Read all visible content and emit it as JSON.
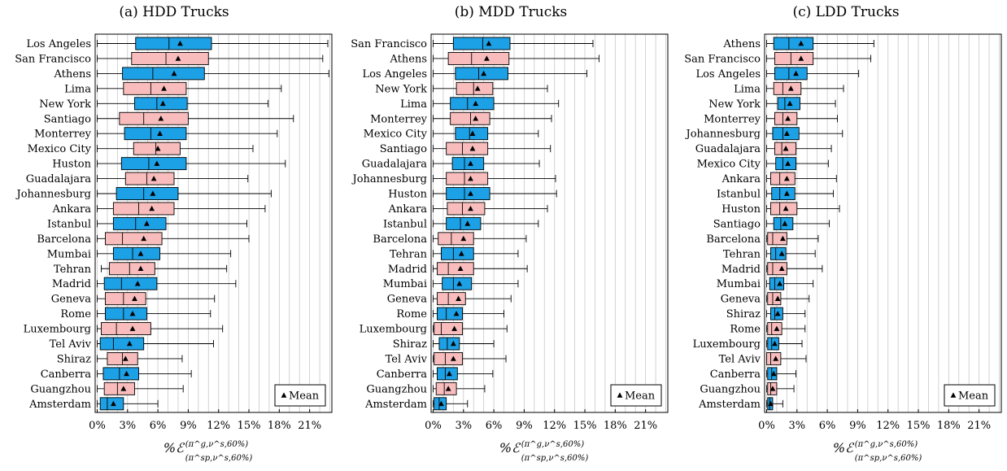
{
  "colors": {
    "salmon": "#f8bcbc",
    "blue": "#1ca0e6",
    "grid": "#c8c8c8",
    "frame": "#000000"
  },
  "xaxis": {
    "ticks": [
      0,
      3,
      6,
      9,
      12,
      15,
      18,
      21
    ],
    "tick_labels": [
      "0%",
      "3%",
      "6%",
      "9%",
      "12%",
      "15%",
      "18%",
      "21%"
    ],
    "label_main": "%ℰ",
    "label_sup": "(π^g,ν^s,60%)",
    "label_sub": "(π^sp,ν^s,60%)"
  },
  "chart_data": [
    {
      "type": "box",
      "title": "(a) HDD Trucks",
      "xlim": [
        -0.2,
        23.2
      ],
      "legend": {
        "label": "Mean",
        "placement": "bottom-right"
      },
      "categories": [
        "Los Angeles",
        "San Francisco",
        "Athens",
        "Lima",
        "New York",
        "Santiago",
        "Monterrey",
        "Mexico City",
        "Huston",
        "Guadalajara",
        "Johannesburg",
        "Ankara",
        "Istanbul",
        "Barcelona",
        "Mumbai",
        "Tehran",
        "Madrid",
        "Geneva",
        "Rome",
        "Luxembourg",
        "Tel Aviv",
        "Shiraz",
        "Canberra",
        "Guangzhou",
        "Amsterdam"
      ],
      "boxes": [
        {
          "min": 0,
          "q1": 3.8,
          "median": 7.1,
          "q3": 11.3,
          "max": 22.8,
          "mean": 8.2,
          "color": "blue"
        },
        {
          "min": 0,
          "q1": 3.4,
          "median": 6.8,
          "q3": 11.0,
          "max": 22.3,
          "mean": 8.0,
          "color": "salmon"
        },
        {
          "min": 0,
          "q1": 2.5,
          "median": 5.5,
          "q3": 10.6,
          "max": 22.9,
          "mean": 7.6,
          "color": "blue"
        },
        {
          "min": 0,
          "q1": 2.6,
          "median": 5.3,
          "q3": 8.8,
          "max": 18.2,
          "mean": 6.6,
          "color": "salmon"
        },
        {
          "min": 0,
          "q1": 3.7,
          "median": 5.9,
          "q3": 8.9,
          "max": 16.9,
          "mean": 6.5,
          "color": "blue"
        },
        {
          "min": 0,
          "q1": 2.2,
          "median": 4.6,
          "q3": 9.0,
          "max": 19.4,
          "mean": 6.3,
          "color": "salmon"
        },
        {
          "min": 0,
          "q1": 2.7,
          "median": 5.3,
          "q3": 8.8,
          "max": 17.8,
          "mean": 6.2,
          "color": "blue"
        },
        {
          "min": 0,
          "q1": 3.6,
          "median": 5.8,
          "q3": 8.2,
          "max": 15.4,
          "mean": 6.0,
          "color": "salmon"
        },
        {
          "min": 0,
          "q1": 2.4,
          "median": 5.1,
          "q3": 8.8,
          "max": 18.6,
          "mean": 5.9,
          "color": "blue"
        },
        {
          "min": 0,
          "q1": 2.8,
          "median": 4.9,
          "q3": 7.6,
          "max": 14.9,
          "mean": 5.6,
          "color": "salmon"
        },
        {
          "min": 0,
          "q1": 1.9,
          "median": 4.6,
          "q3": 8.0,
          "max": 17.2,
          "mean": 5.5,
          "color": "blue"
        },
        {
          "min": 0,
          "q1": 1.6,
          "median": 4.1,
          "q3": 7.6,
          "max": 16.6,
          "mean": 5.4,
          "color": "salmon"
        },
        {
          "min": 0,
          "q1": 1.6,
          "median": 3.8,
          "q3": 6.8,
          "max": 14.8,
          "mean": 4.9,
          "color": "blue"
        },
        {
          "min": 0,
          "q1": 0.8,
          "median": 2.5,
          "q3": 6.4,
          "max": 15.0,
          "mean": 4.6,
          "color": "salmon"
        },
        {
          "min": 0,
          "q1": 1.6,
          "median": 3.5,
          "q3": 6.2,
          "max": 13.2,
          "mean": 4.3,
          "color": "blue"
        },
        {
          "min": 0.4,
          "q1": 1.2,
          "median": 3.2,
          "q3": 5.7,
          "max": 12.8,
          "mean": 4.3,
          "color": "salmon"
        },
        {
          "min": 0,
          "q1": 0.7,
          "median": 2.4,
          "q3": 5.9,
          "max": 13.7,
          "mean": 4.0,
          "color": "blue"
        },
        {
          "min": 0,
          "q1": 0.8,
          "median": 2.6,
          "q3": 4.8,
          "max": 11.6,
          "mean": 3.7,
          "color": "salmon"
        },
        {
          "min": 0,
          "q1": 0.8,
          "median": 2.6,
          "q3": 4.9,
          "max": 11.2,
          "mean": 3.5,
          "color": "blue"
        },
        {
          "min": 0,
          "q1": 0.4,
          "median": 1.9,
          "q3": 5.3,
          "max": 12.4,
          "mean": 3.5,
          "color": "salmon"
        },
        {
          "min": 0,
          "q1": 0.3,
          "median": 1.6,
          "q3": 4.6,
          "max": 11.5,
          "mean": 3.2,
          "color": "blue"
        },
        {
          "min": 0,
          "q1": 1.0,
          "median": 2.5,
          "q3": 4.0,
          "max": 8.4,
          "mean": 2.8,
          "color": "salmon"
        },
        {
          "min": 0,
          "q1": 0.6,
          "median": 2.2,
          "q3": 4.1,
          "max": 9.3,
          "mean": 2.9,
          "color": "blue"
        },
        {
          "min": 0,
          "q1": 0.7,
          "median": 2.0,
          "q3": 3.7,
          "max": 8.5,
          "mean": 2.6,
          "color": "salmon"
        },
        {
          "min": 0,
          "q1": 0.3,
          "median": 1.0,
          "q3": 2.6,
          "max": 6.0,
          "mean": 1.6,
          "color": "blue"
        }
      ]
    },
    {
      "type": "box",
      "title": "(b) MDD Trucks",
      "xlim": [
        -0.2,
        23.2
      ],
      "legend": {
        "label": "Mean",
        "placement": "bottom-right"
      },
      "categories": [
        "San Francisco",
        "Athens",
        "Los Angeles",
        "New York",
        "Lima",
        "Monterrey",
        "Mexico City",
        "Santiago",
        "Guadalajara",
        "Johannesburg",
        "Huston",
        "Ankara",
        "Istanbul",
        "Barcelona",
        "Tehran",
        "Madrid",
        "Mumbai",
        "Geneva",
        "Rome",
        "Luxembourg",
        "Shiraz",
        "Tel Aviv",
        "Canberra",
        "Guangzhou",
        "Amsterdam"
      ],
      "boxes": [
        {
          "min": 0,
          "q1": 2.0,
          "median": 4.9,
          "q3": 7.6,
          "max": 15.8,
          "mean": 5.5,
          "color": "blue"
        },
        {
          "min": 0,
          "q1": 1.5,
          "median": 3.8,
          "q3": 7.5,
          "max": 16.4,
          "mean": 5.3,
          "color": "salmon"
        },
        {
          "min": 0,
          "q1": 2.2,
          "median": 4.5,
          "q3": 7.4,
          "max": 15.2,
          "mean": 5.0,
          "color": "blue"
        },
        {
          "min": 0,
          "q1": 2.3,
          "median": 4.0,
          "q3": 5.9,
          "max": 11.3,
          "mean": 4.4,
          "color": "salmon"
        },
        {
          "min": 0,
          "q1": 1.7,
          "median": 3.4,
          "q3": 6.0,
          "max": 12.4,
          "mean": 4.2,
          "color": "blue"
        },
        {
          "min": 0,
          "q1": 1.7,
          "median": 3.7,
          "q3": 5.6,
          "max": 11.7,
          "mean": 4.2,
          "color": "salmon"
        },
        {
          "min": 0,
          "q1": 2.2,
          "median": 3.6,
          "q3": 5.4,
          "max": 10.4,
          "mean": 3.9,
          "color": "blue"
        },
        {
          "min": 0,
          "q1": 1.3,
          "median": 2.9,
          "q3": 5.4,
          "max": 11.6,
          "mean": 3.9,
          "color": "salmon"
        },
        {
          "min": 0,
          "q1": 1.9,
          "median": 3.1,
          "q3": 5.0,
          "max": 10.5,
          "mean": 3.7,
          "color": "blue"
        },
        {
          "min": 0,
          "q1": 1.3,
          "median": 3.1,
          "q3": 5.4,
          "max": 12.1,
          "mean": 3.7,
          "color": "salmon"
        },
        {
          "min": 0,
          "q1": 1.3,
          "median": 3.1,
          "q3": 5.6,
          "max": 12.2,
          "mean": 3.7,
          "color": "blue"
        },
        {
          "min": 0,
          "q1": 1.4,
          "median": 2.9,
          "q3": 5.1,
          "max": 11.3,
          "mean": 3.7,
          "color": "salmon"
        },
        {
          "min": 0,
          "q1": 1.3,
          "median": 2.7,
          "q3": 4.7,
          "max": 10.4,
          "mean": 3.4,
          "color": "blue"
        },
        {
          "min": 0,
          "q1": 0.5,
          "median": 1.8,
          "q3": 4.0,
          "max": 9.2,
          "mean": 3.0,
          "color": "salmon"
        },
        {
          "min": 0,
          "q1": 0.8,
          "median": 2.0,
          "q3": 4.0,
          "max": 8.4,
          "mean": 2.8,
          "color": "blue"
        },
        {
          "min": 0,
          "q1": 0.4,
          "median": 1.5,
          "q3": 4.0,
          "max": 9.3,
          "mean": 2.7,
          "color": "salmon"
        },
        {
          "min": 0,
          "q1": 0.9,
          "median": 2.0,
          "q3": 3.8,
          "max": 8.4,
          "mean": 2.6,
          "color": "blue"
        },
        {
          "min": 0,
          "q1": 0.4,
          "median": 1.5,
          "q3": 3.2,
          "max": 7.7,
          "mean": 2.5,
          "color": "salmon"
        },
        {
          "min": 0,
          "q1": 0.4,
          "median": 1.3,
          "q3": 2.9,
          "max": 7.0,
          "mean": 2.3,
          "color": "blue"
        },
        {
          "min": 0,
          "q1": 0.1,
          "median": 0.8,
          "q3": 2.9,
          "max": 7.3,
          "mean": 2.1,
          "color": "salmon"
        },
        {
          "min": 0,
          "q1": 0.6,
          "median": 1.4,
          "q3": 2.6,
          "max": 6.0,
          "mean": 2.0,
          "color": "blue"
        },
        {
          "min": 0,
          "q1": 0.1,
          "median": 1.2,
          "q3": 2.9,
          "max": 7.2,
          "mean": 2.0,
          "color": "salmon"
        },
        {
          "min": 0,
          "q1": 0.4,
          "median": 1.2,
          "q3": 2.4,
          "max": 5.9,
          "mean": 1.6,
          "color": "blue"
        },
        {
          "min": 0,
          "q1": 0.3,
          "median": 1.1,
          "q3": 2.3,
          "max": 5.1,
          "mean": 1.5,
          "color": "salmon"
        },
        {
          "min": 0,
          "q1": 0.1,
          "median": 0.6,
          "q3": 1.3,
          "max": 3.4,
          "mean": 0.8,
          "color": "blue"
        }
      ]
    },
    {
      "type": "box",
      "title": "(c) LDD Trucks",
      "xlim": [
        -0.2,
        23.2
      ],
      "legend": {
        "label": "Mean",
        "placement": "bottom-right"
      },
      "categories": [
        "Athens",
        "San Francisco",
        "Los Angeles",
        "Lima",
        "New York",
        "Monterrey",
        "Johannesburg",
        "Guadalajara",
        "Mexico City",
        "Ankara",
        "Istanbul",
        "Huston",
        "Santiago",
        "Barcelona",
        "Tehran",
        "Madrid",
        "Mumbai",
        "Geneva",
        "Shiraz",
        "Rome",
        "Luxembourg",
        "Tel Aviv",
        "Canberra",
        "Guangzhou",
        "Amsterdam"
      ],
      "boxes": [
        {
          "min": 0,
          "q1": 0.7,
          "median": 2.2,
          "q3": 4.6,
          "max": 10.6,
          "mean": 3.4,
          "color": "blue"
        },
        {
          "min": 0,
          "q1": 0.8,
          "median": 2.4,
          "q3": 4.6,
          "max": 10.3,
          "mean": 3.4,
          "color": "salmon"
        },
        {
          "min": 0,
          "q1": 0.8,
          "median": 2.2,
          "q3": 4.0,
          "max": 9.1,
          "mean": 2.9,
          "color": "blue"
        },
        {
          "min": 0,
          "q1": 0.7,
          "median": 1.6,
          "q3": 3.4,
          "max": 7.6,
          "mean": 2.4,
          "color": "salmon"
        },
        {
          "min": 0,
          "q1": 1.1,
          "median": 1.8,
          "q3": 3.3,
          "max": 6.8,
          "mean": 2.3,
          "color": "blue"
        },
        {
          "min": 0,
          "q1": 0.8,
          "median": 1.6,
          "q3": 3.0,
          "max": 7.0,
          "mean": 2.1,
          "color": "salmon"
        },
        {
          "min": 0,
          "q1": 0.6,
          "median": 1.6,
          "q3": 3.2,
          "max": 7.5,
          "mean": 2.0,
          "color": "blue"
        },
        {
          "min": 0,
          "q1": 0.8,
          "median": 1.5,
          "q3": 2.9,
          "max": 6.4,
          "mean": 1.9,
          "color": "salmon"
        },
        {
          "min": 0,
          "q1": 0.9,
          "median": 1.6,
          "q3": 2.9,
          "max": 6.1,
          "mean": 2.1,
          "color": "blue"
        },
        {
          "min": 0,
          "q1": 0.4,
          "median": 1.3,
          "q3": 2.8,
          "max": 6.9,
          "mean": 2.0,
          "color": "salmon"
        },
        {
          "min": 0,
          "q1": 0.5,
          "median": 1.3,
          "q3": 2.8,
          "max": 6.6,
          "mean": 2.0,
          "color": "blue"
        },
        {
          "min": 0,
          "q1": 0.4,
          "median": 1.3,
          "q3": 3.0,
          "max": 7.2,
          "mean": 1.9,
          "color": "salmon"
        },
        {
          "min": 0,
          "q1": 0.7,
          "median": 1.4,
          "q3": 2.6,
          "max": 6.2,
          "mean": 1.8,
          "color": "blue"
        },
        {
          "min": 0,
          "q1": 0.1,
          "median": 0.6,
          "q3": 2.0,
          "max": 5.1,
          "mean": 1.6,
          "color": "salmon"
        },
        {
          "min": 0,
          "q1": 0.4,
          "median": 0.9,
          "q3": 1.9,
          "max": 4.8,
          "mean": 1.5,
          "color": "blue"
        },
        {
          "min": 0,
          "q1": 0.1,
          "median": 0.6,
          "q3": 2.0,
          "max": 5.5,
          "mean": 1.5,
          "color": "salmon"
        },
        {
          "min": 0,
          "q1": 0.3,
          "median": 0.8,
          "q3": 1.7,
          "max": 4.6,
          "mean": 1.3,
          "color": "blue"
        },
        {
          "min": 0,
          "q1": 0.1,
          "median": 0.6,
          "q3": 1.4,
          "max": 4.2,
          "mean": 1.1,
          "color": "salmon"
        },
        {
          "min": 0,
          "q1": 0.4,
          "median": 0.8,
          "q3": 1.6,
          "max": 3.8,
          "mean": 1.1,
          "color": "blue"
        },
        {
          "min": 0,
          "q1": 0.1,
          "median": 0.5,
          "q3": 1.5,
          "max": 3.8,
          "mean": 1.0,
          "color": "salmon"
        },
        {
          "min": 0,
          "q1": 0.1,
          "median": 0.5,
          "q3": 1.2,
          "max": 3.5,
          "mean": 0.8,
          "color": "blue"
        },
        {
          "min": 0,
          "q1": 0.0,
          "median": 0.4,
          "q3": 1.4,
          "max": 3.9,
          "mean": 0.9,
          "color": "salmon"
        },
        {
          "min": 0,
          "q1": 0.1,
          "median": 0.5,
          "q3": 1.0,
          "max": 2.9,
          "mean": 0.7,
          "color": "blue"
        },
        {
          "min": 0,
          "q1": 0.1,
          "median": 0.4,
          "q3": 1.0,
          "max": 2.7,
          "mean": 0.6,
          "color": "salmon"
        },
        {
          "min": 0,
          "q1": 0.1,
          "median": 0.3,
          "q3": 0.6,
          "max": 1.6,
          "mean": 0.4,
          "color": "blue"
        }
      ]
    }
  ]
}
